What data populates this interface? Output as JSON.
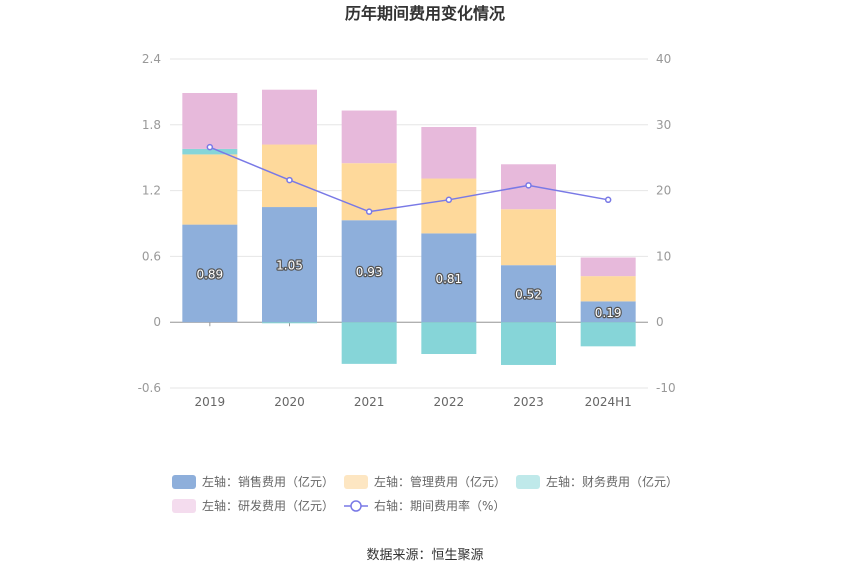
{
  "chart_data": {
    "type": "bar",
    "title": "历年期间费用变化情况",
    "categories": [
      "2019",
      "2020",
      "2021",
      "2022",
      "2023",
      "2024H1"
    ],
    "left_axis": {
      "ylim": [
        -0.6,
        2.4
      ],
      "ticks": [
        "-0.6",
        "0",
        "0.6",
        "1.2",
        "1.8",
        "2.4"
      ],
      "tick_values": [
        -0.6,
        0,
        0.6,
        1.2,
        1.8,
        2.4
      ]
    },
    "right_axis": {
      "ylim": [
        -10,
        40
      ],
      "ticks": [
        "-10",
        "0",
        "10",
        "20",
        "30",
        "40"
      ],
      "tick_values": [
        -10,
        0,
        10,
        20,
        30,
        40
      ]
    },
    "series": [
      {
        "name": "左轴：销售费用（亿元）",
        "type": "stacked-bar",
        "axis": "left",
        "color": "#8eafdb",
        "values": [
          0.89,
          1.05,
          0.93,
          0.81,
          0.52,
          0.19
        ],
        "labels": [
          "0.89",
          "1.05",
          "0.93",
          "0.81",
          "0.52",
          "0.19"
        ]
      },
      {
        "name": "左轴：管理费用（亿元）",
        "type": "stacked-bar",
        "axis": "left",
        "color": "#fed99b",
        "values": [
          0.64,
          0.57,
          0.52,
          0.5,
          0.51,
          0.23
        ]
      },
      {
        "name": "左轴：财务费用（亿元）",
        "type": "stacked-bar",
        "axis": "left",
        "color": "#86d5d8",
        "values": [
          0.05,
          -0.01,
          -0.38,
          -0.29,
          -0.39,
          -0.22
        ]
      },
      {
        "name": "左轴：研发费用（亿元）",
        "type": "stacked-bar",
        "axis": "left",
        "color": "#e7b9db",
        "values": [
          0.51,
          0.5,
          0.48,
          0.47,
          0.41,
          0.17
        ]
      },
      {
        "name": "右轴：期间费用率（%）",
        "type": "line",
        "axis": "right",
        "color": "#7979e6",
        "values": [
          26.6,
          21.6,
          16.8,
          18.6,
          20.8,
          18.6
        ]
      }
    ],
    "grid": true,
    "legend_position": "bottom"
  },
  "legend_fills": [
    "#8eafdb",
    "#fde6c2",
    "#bfe9ea",
    "#f4dcee"
  ],
  "source_text": "数据来源：恒生聚源"
}
